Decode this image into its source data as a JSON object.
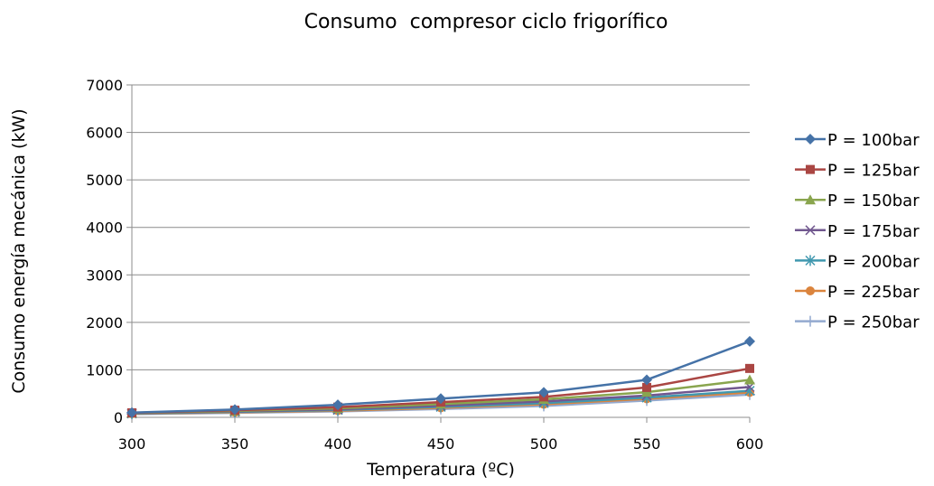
{
  "chart_data": {
    "type": "line",
    "title": "Consumo  compresor ciclo frigorífico",
    "xlabel": "Temperatura (ºC)",
    "ylabel": "Consumo energía mecánica (kW)",
    "x": [
      300,
      350,
      400,
      450,
      500,
      550,
      600
    ],
    "xlim": [
      300,
      600
    ],
    "ylim": [
      0,
      7000
    ],
    "yticks": [
      0,
      1000,
      2000,
      3000,
      4000,
      5000,
      6000,
      7000
    ],
    "xticks": [
      300,
      350,
      400,
      450,
      500,
      550,
      600
    ],
    "grid": "horizontal",
    "legend_position": "right",
    "series": [
      {
        "name": "P = 100bar",
        "color": "#4572A7",
        "marker": "diamond",
        "values": [
          100,
          165,
          265,
          395,
          525,
          790,
          1600
        ]
      },
      {
        "name": "P = 125bar",
        "color": "#AA4643",
        "marker": "square",
        "values": [
          95,
          150,
          215,
          320,
          430,
          630,
          1030
        ]
      },
      {
        "name": "P = 150bar",
        "color": "#89A54E",
        "marker": "triangle",
        "values": [
          90,
          135,
          190,
          280,
          380,
          530,
          790
        ]
      },
      {
        "name": "P = 175bar",
        "color": "#71588F",
        "marker": "x",
        "values": [
          85,
          125,
          170,
          245,
          335,
          460,
          640
        ]
      },
      {
        "name": "P = 200bar",
        "color": "#4198AF",
        "marker": "star",
        "values": [
          80,
          115,
          155,
          220,
          300,
          415,
          560
        ]
      },
      {
        "name": "P = 225bar",
        "color": "#DB843D",
        "marker": "circle",
        "values": [
          75,
          105,
          140,
          200,
          275,
          390,
          525
        ]
      },
      {
        "name": "P = 250bar",
        "color": "#93A9CF",
        "marker": "plus",
        "values": [
          70,
          95,
          125,
          175,
          240,
          355,
          480
        ]
      }
    ]
  }
}
